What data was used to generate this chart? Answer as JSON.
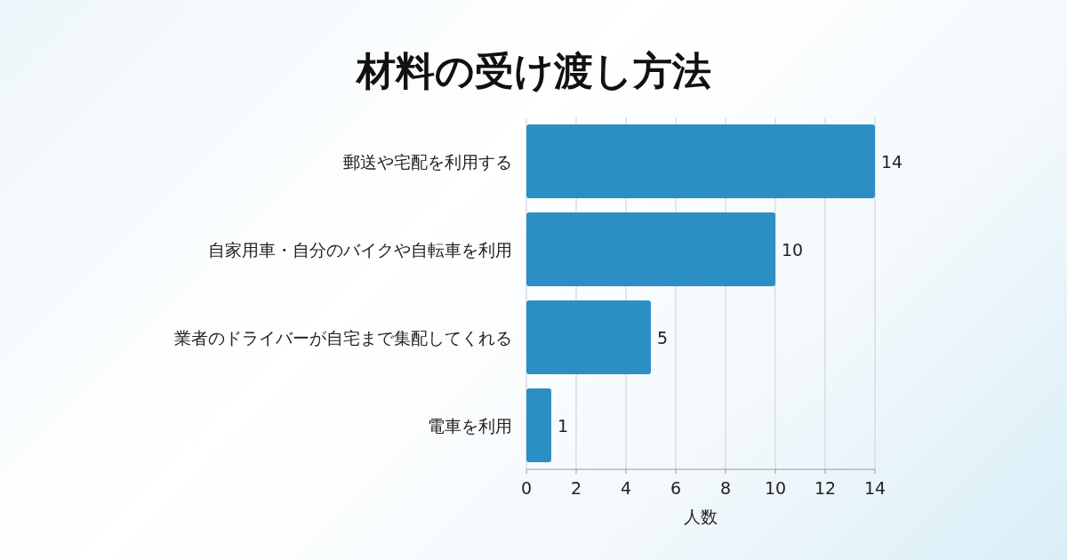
{
  "chart_data": {
    "type": "bar",
    "orientation": "horizontal",
    "title": "材料の受け渡し方法",
    "xlabel": "人数",
    "categories": [
      "郵送や宅配を利用する",
      "自家用車・自分のバイクや自転車を利用",
      "業者のドライバーが自宅まで集配してくれる",
      "電車を利用"
    ],
    "values": [
      14,
      10,
      5,
      1
    ],
    "color": "#2b8fc4",
    "xlim": [
      0,
      14
    ],
    "xticks": [
      0,
      2,
      4,
      6,
      8,
      10,
      12,
      14
    ],
    "grid": "x",
    "data_labels": true
  }
}
